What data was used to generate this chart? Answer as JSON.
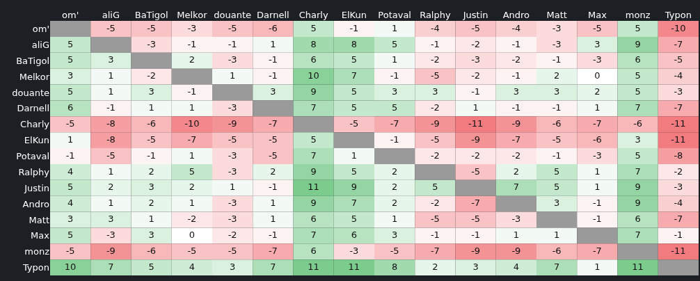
{
  "chart_data": {
    "type": "heatmap",
    "data_labels": true,
    "categories": [
      "om'",
      "aliG",
      "BaTigol",
      "Melkor",
      "douante",
      "Darnell",
      "Charly",
      "ElKun",
      "Potaval",
      "Ralphy",
      "Justin",
      "Andro",
      "Matt",
      "Max",
      "monz",
      "Typon"
    ],
    "y_categories": [
      "om'",
      "aliG",
      "BaTigol",
      "Melkor",
      "douante",
      "Darnell",
      "Charly",
      "ElKun",
      "Potaval",
      "Ralphy",
      "Justin",
      "Andro",
      "Matt",
      "Max",
      "monz",
      "Typon"
    ],
    "cells": [
      [
        null,
        -5,
        -5,
        -3,
        -5,
        -6,
        5,
        -1,
        1,
        -4,
        -5,
        -4,
        -3,
        -5,
        5,
        -10
      ],
      [
        5,
        null,
        -3,
        -1,
        -1,
        1,
        8,
        8,
        5,
        -1,
        -2,
        -1,
        -3,
        3,
        9,
        -7
      ],
      [
        5,
        3,
        null,
        2,
        -3,
        -1,
        6,
        5,
        1,
        -2,
        -3,
        -2,
        -1,
        -3,
        6,
        -5
      ],
      [
        3,
        1,
        -2,
        null,
        1,
        -1,
        10,
        7,
        -1,
        -5,
        -2,
        -1,
        2,
        0,
        5,
        -4
      ],
      [
        5,
        1,
        3,
        -1,
        null,
        3,
        9,
        5,
        3,
        3,
        -1,
        3,
        3,
        2,
        5,
        -3
      ],
      [
        6,
        -1,
        1,
        1,
        -3,
        null,
        7,
        5,
        5,
        -2,
        1,
        -1,
        -1,
        1,
        7,
        -7
      ],
      [
        -5,
        -8,
        -6,
        -10,
        -9,
        -7,
        null,
        -5,
        -7,
        -9,
        -11,
        -9,
        -6,
        -7,
        -6,
        -11
      ],
      [
        1,
        -8,
        -5,
        -7,
        -5,
        -5,
        5,
        null,
        -1,
        -5,
        -9,
        -7,
        -5,
        -6,
        3,
        -11
      ],
      [
        -1,
        -5,
        -1,
        1,
        -3,
        -5,
        7,
        1,
        null,
        -2,
        -2,
        -2,
        -1,
        -3,
        5,
        -8
      ],
      [
        4,
        1,
        2,
        5,
        -3,
        2,
        9,
        5,
        2,
        null,
        -5,
        2,
        5,
        1,
        7,
        -2
      ],
      [
        5,
        2,
        3,
        2,
        1,
        -1,
        11,
        9,
        2,
        5,
        null,
        7,
        5,
        1,
        9,
        -3
      ],
      [
        4,
        1,
        2,
        1,
        -3,
        1,
        9,
        7,
        2,
        -2,
        -7,
        null,
        3,
        -1,
        9,
        -4
      ],
      [
        3,
        3,
        1,
        -2,
        -3,
        1,
        6,
        5,
        1,
        -5,
        -5,
        -3,
        null,
        -1,
        6,
        -7
      ],
      [
        5,
        -3,
        3,
        0,
        -2,
        -1,
        7,
        6,
        3,
        -1,
        -1,
        1,
        1,
        null,
        7,
        -1
      ],
      [
        -5,
        -9,
        -6,
        -5,
        -5,
        -7,
        6,
        -3,
        -5,
        -7,
        -9,
        -9,
        -6,
        -7,
        null,
        -11
      ],
      [
        10,
        7,
        5,
        4,
        3,
        7,
        11,
        11,
        8,
        2,
        3,
        4,
        7,
        1,
        11,
        null
      ]
    ]
  }
}
